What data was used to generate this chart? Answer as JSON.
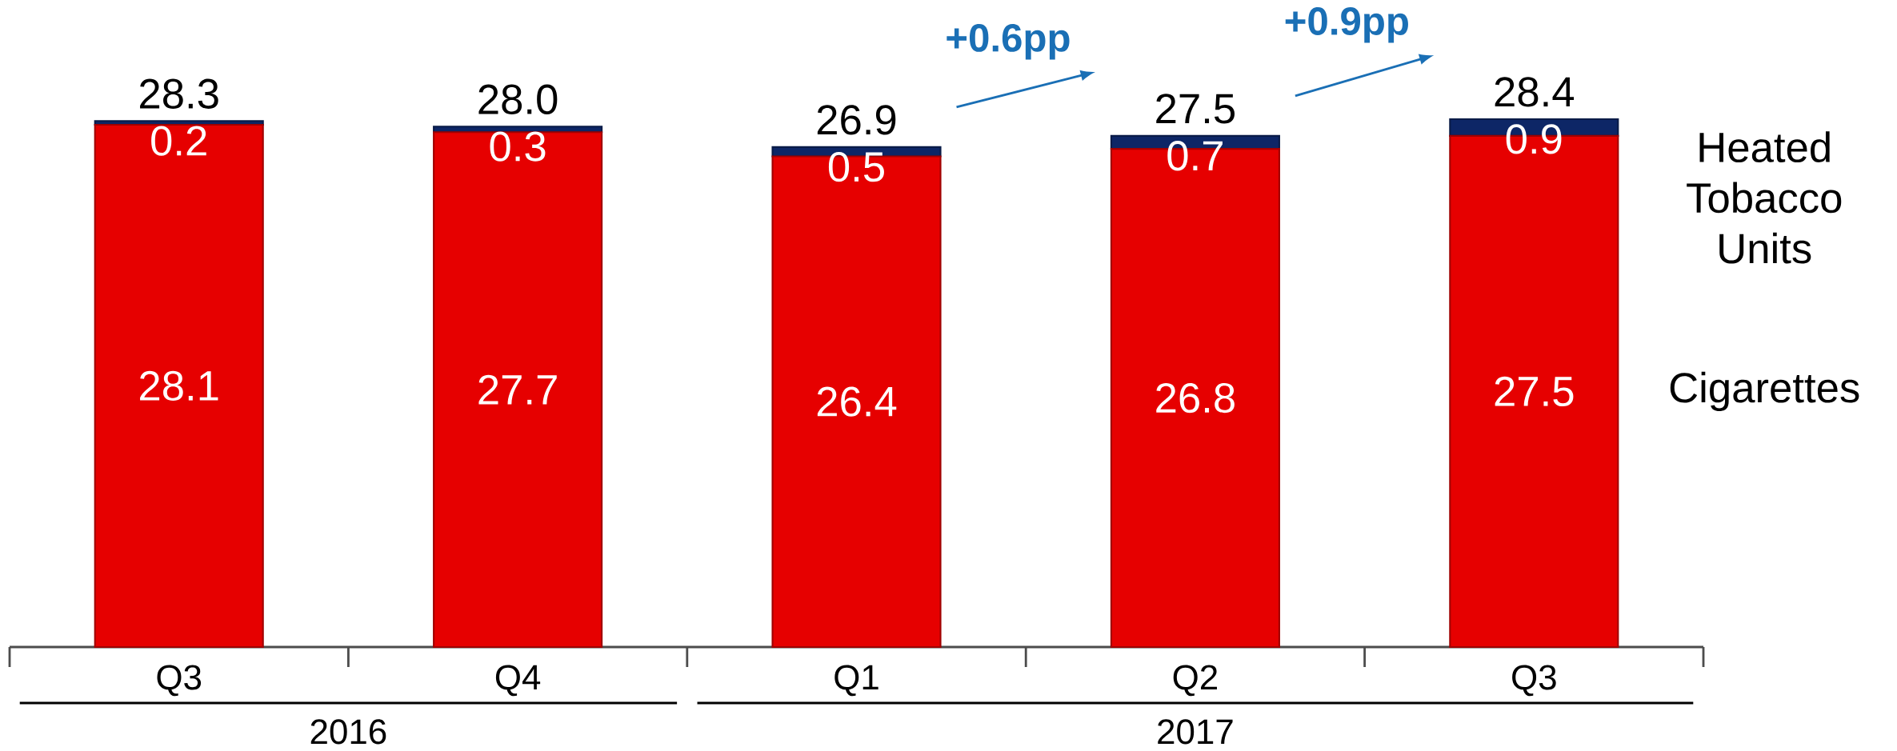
{
  "chart_data": {
    "type": "bar",
    "stacked": true,
    "data_labels": true,
    "legend": "right",
    "categories": [
      "Q3",
      "Q4",
      "Q1",
      "Q2",
      "Q3"
    ],
    "series": [
      {
        "name": "Cigarettes",
        "color": "#e60000",
        "values": [
          28.1,
          27.7,
          26.4,
          26.8,
          27.5
        ]
      },
      {
        "name": "Heated Tobacco Units",
        "color": "#0d2666",
        "values": [
          0.2,
          0.3,
          0.5,
          0.7,
          0.9
        ]
      }
    ],
    "totals": [
      "28.3",
      "28.0",
      "26.9",
      "27.5",
      "28.4"
    ],
    "annotations": [
      "2016",
      "2017",
      "+0.6pp",
      "+0.9pp"
    ]
  }
}
